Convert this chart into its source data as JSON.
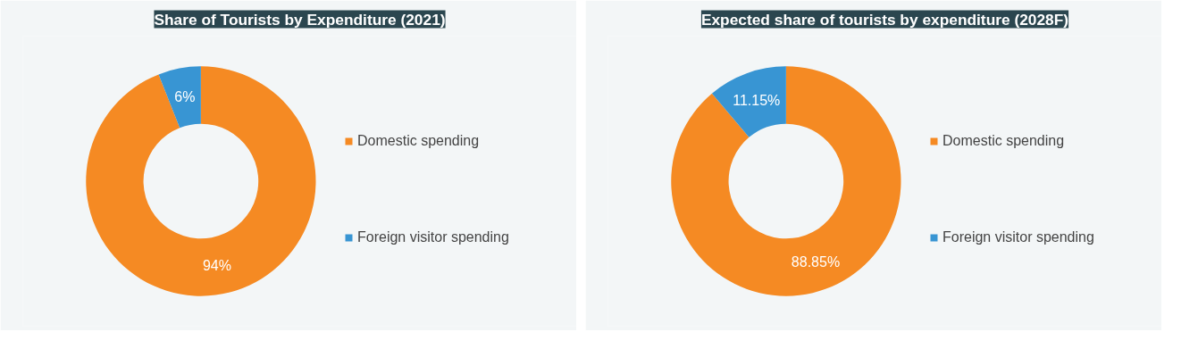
{
  "chart_data": [
    {
      "type": "donut",
      "title": "Share of Tourists by Expenditure (2021)",
      "categories": [
        "Domestic spending",
        "Foreign visitor spending"
      ],
      "values": [
        94,
        6
      ],
      "colors": [
        "#f58a23",
        "#3895d3"
      ],
      "value_labels": [
        "94%",
        "6%"
      ],
      "legend": "right"
    },
    {
      "type": "donut",
      "title": "Expected share of tourists by expenditure (2028F)",
      "categories": [
        "Domestic spending",
        "Foreign visitor spending"
      ],
      "values": [
        88.85,
        11.15
      ],
      "colors": [
        "#f58a23",
        "#3895d3"
      ],
      "value_labels": [
        "88.85%",
        "11.15%"
      ],
      "legend": "right"
    }
  ]
}
